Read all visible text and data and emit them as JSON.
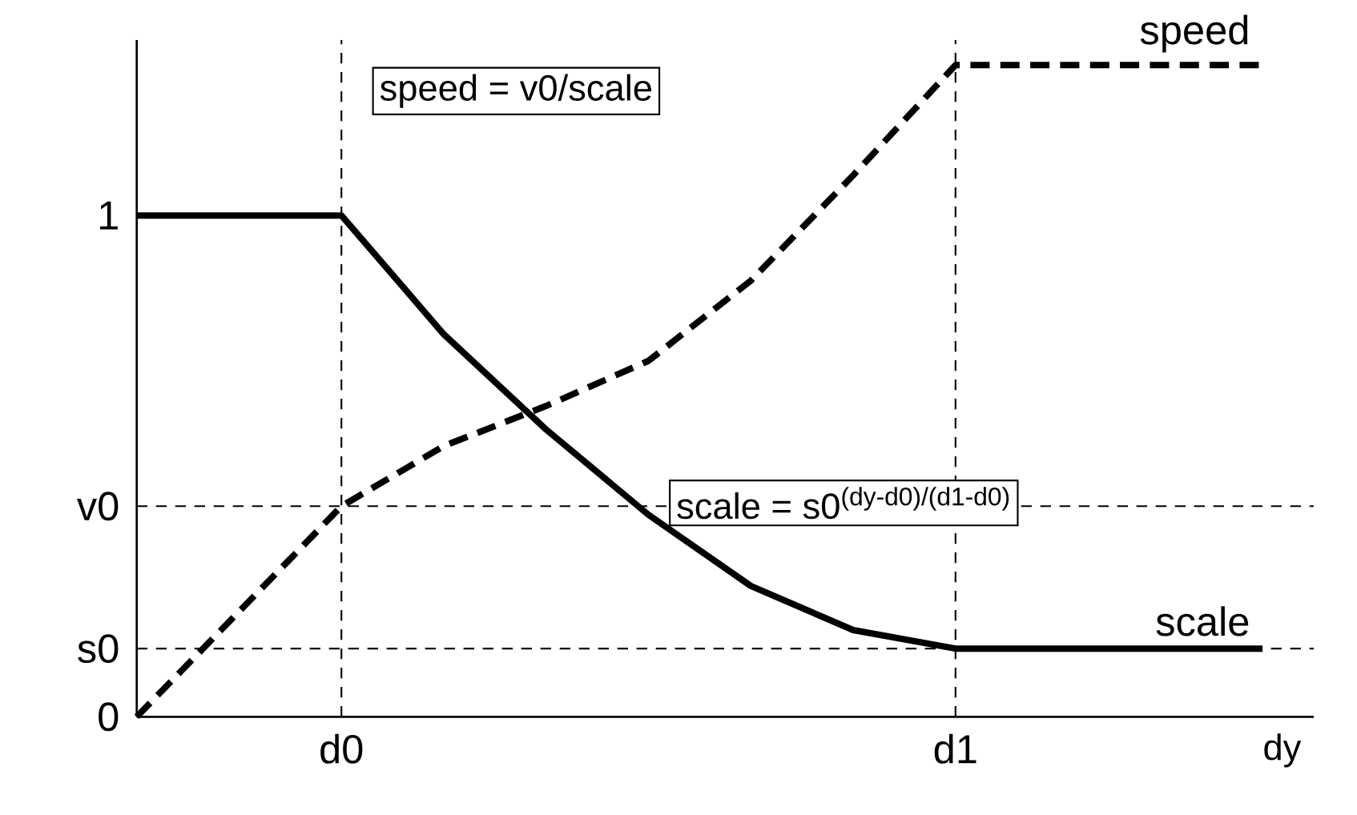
{
  "chart_data": {
    "type": "line",
    "xlabel": "dy",
    "categories": [
      null,
      null,
      "d0",
      null,
      null,
      null,
      null,
      null,
      "d1",
      null,
      null,
      null
    ],
    "ylim": [
      0,
      1.35
    ],
    "yticks": [
      {
        "value": 0,
        "label": "0"
      },
      {
        "value": 0.136,
        "label": "s0"
      },
      {
        "value": 0.42,
        "label": "v0"
      },
      {
        "value": 1,
        "label": "1"
      }
    ],
    "ref_lines": [
      {
        "axis": "y",
        "value": 0.42,
        "line_style": "dashed",
        "color": "#000000"
      },
      {
        "axis": "y",
        "value": 0.136,
        "line_style": "dashed",
        "color": "#000000"
      }
    ],
    "series": [
      {
        "name": "scale",
        "color": "#000000",
        "line_style": "solid",
        "values": [
          1,
          1,
          1,
          0.763,
          0.573,
          0.403,
          0.261,
          0.173,
          0.136,
          0.136,
          0.136,
          0.136
        ]
      },
      {
        "name": "speed",
        "color": "#000000",
        "line_style": "dashed",
        "values": [
          0,
          0.21,
          0.42,
          0.54,
          0.62,
          0.71,
          0.87,
          1.08,
          1.3,
          1.3,
          1.3,
          1.3
        ]
      }
    ],
    "annotations": [
      "speed = v0/scale",
      "scale = s0$^{(dy-d0)/(d1-d0)}$"
    ],
    "grid": "x",
    "marker": "none"
  }
}
